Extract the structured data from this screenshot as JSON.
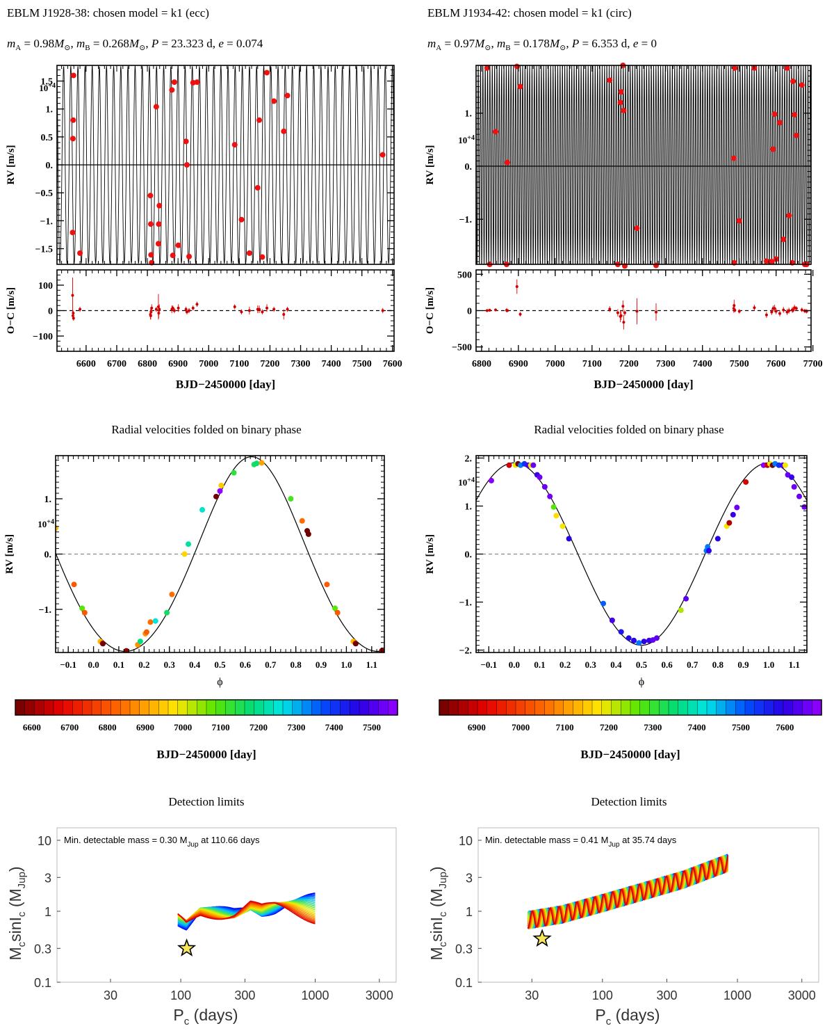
{
  "chart_data": [
    {
      "id": "rv_left",
      "type": "scatter",
      "title": "EBLM J1928-38: chosen model = k1 (ecc)",
      "subtitle": "m_A = 0.98M_sun, m_B = 0.268M_sun, P = 23.323 d, e = 0.074",
      "ylabel": "RV [m/s]",
      "y_multiplier": "10+4",
      "xlim": [
        6505,
        7605
      ],
      "ylim": [
        -1.78,
        1.78
      ],
      "yticks": [
        -1.5,
        -1.0,
        -0.5,
        0.0,
        0.5,
        1.0,
        1.5
      ],
      "model": {
        "K": 1.76,
        "P": 23.323,
        "e": 0.074
      },
      "x": [
        6556,
        6557,
        6558,
        6559,
        6580,
        6810,
        6811,
        6812,
        6814,
        6829,
        6836,
        6837,
        6839,
        6880,
        6883,
        6888,
        6901,
        6926,
        6929,
        6936,
        6949,
        6962,
        7085,
        7107,
        7133,
        7160,
        7165,
        7175,
        7190,
        7213,
        7245,
        7257,
        7568
      ],
      "y": [
        -1.21,
        0.47,
        0.8,
        1.6,
        -1.58,
        -0.55,
        -1.06,
        -1.61,
        -1.75,
        1.04,
        -1.41,
        -1.06,
        -0.73,
        1.34,
        -1.62,
        1.48,
        -1.44,
        0.42,
        0.0,
        -1.64,
        1.47,
        1.48,
        0.36,
        -0.98,
        -1.58,
        -0.41,
        0.8,
        -1.65,
        1.65,
        1.14,
        0.6,
        1.24,
        0.18
      ]
    },
    {
      "id": "oc_left",
      "type": "scatter",
      "ylabel": "O−C [m/s]",
      "xlabel": "BJD−2450000 [day]",
      "xlim": [
        6505,
        7605
      ],
      "ylim": [
        -160,
        160
      ],
      "yticks": [
        -100,
        0,
        100
      ],
      "xticks": [
        6600,
        6700,
        6800,
        6900,
        7000,
        7100,
        7200,
        7300,
        7400,
        7500,
        7600
      ],
      "x": [
        6556,
        6557,
        6558,
        6559,
        6580,
        6810,
        6811,
        6812,
        6814,
        6829,
        6836,
        6837,
        6839,
        6880,
        6883,
        6888,
        6901,
        6926,
        6929,
        6936,
        6949,
        6962,
        7085,
        7107,
        7133,
        7160,
        7165,
        7175,
        7190,
        7213,
        7245,
        7257,
        7568
      ],
      "y": [
        60,
        -20,
        -10,
        -30,
        5,
        -15,
        -20,
        -5,
        10,
        5,
        15,
        -10,
        5,
        5,
        10,
        0,
        10,
        5,
        -5,
        0,
        10,
        25,
        15,
        -5,
        0,
        5,
        5,
        -5,
        10,
        5,
        -15,
        5,
        0
      ],
      "err": [
        70,
        15,
        10,
        10,
        10,
        20,
        15,
        15,
        15,
        10,
        50,
        20,
        20,
        15,
        10,
        10,
        15,
        10,
        10,
        10,
        10,
        10,
        10,
        10,
        15,
        15,
        15,
        10,
        15,
        10,
        20,
        10,
        10
      ]
    },
    {
      "id": "rv_right",
      "type": "scatter",
      "title": "EBLM J1934-42: chosen model = k1 (circ)",
      "subtitle": "m_A = 0.97M_sun, m_B = 0.178M_sun, P = 6.353 d, e = 0",
      "ylabel": "RV [m/s]",
      "y_multiplier": "10+4",
      "xlim": [
        6785,
        7695
      ],
      "ylim": [
        -1.85,
        1.9
      ],
      "yticks": [
        -1.0,
        0.0,
        1.0
      ],
      "model": {
        "K": 1.9,
        "P": 6.353,
        "e": 0.0
      },
      "x": [
        6815,
        6822,
        6838,
        6868,
        6870,
        6896,
        6905,
        7148,
        7170,
        7177,
        7179,
        7184,
        7186,
        7189,
        7222,
        7274,
        7485,
        7486,
        7488,
        7500,
        7541,
        7574,
        7588,
        7592,
        7596,
        7600,
        7610,
        7620,
        7630,
        7635,
        7644,
        7646,
        7650,
        7655,
        7670,
        7678,
        7683
      ],
      "y": [
        1.85,
        -1.85,
        0.65,
        -1.85,
        0.07,
        1.88,
        1.5,
        1.62,
        -1.85,
        1.2,
        1.4,
        1.9,
        1.05,
        -1.88,
        -1.17,
        -1.87,
        0.15,
        -1.82,
        1.85,
        -1.03,
        1.85,
        -1.79,
        -1.8,
        0.32,
        0.98,
        -1.75,
        0.82,
        -1.38,
        1.85,
        -0.93,
        -1.82,
        1.6,
        0.97,
        0.58,
        1.53,
        -1.85,
        -1.85
      ]
    },
    {
      "id": "oc_right",
      "type": "scatter",
      "ylabel": "O−C [m/s]",
      "xlabel": "BJD−2450000 [day]",
      "xlim": [
        6785,
        7695
      ],
      "ylim": [
        -560,
        560
      ],
      "yticks": [
        -500,
        0,
        500
      ],
      "xticks": [
        6800,
        6900,
        7000,
        7100,
        7200,
        7300,
        7400,
        7500,
        7600,
        7700
      ],
      "x": [
        6815,
        6822,
        6838,
        6868,
        6870,
        6896,
        6905,
        7148,
        7170,
        7177,
        7179,
        7184,
        7186,
        7189,
        7222,
        7274,
        7485,
        7486,
        7488,
        7500,
        7541,
        7574,
        7588,
        7592,
        7596,
        7600,
        7610,
        7620,
        7630,
        7635,
        7644,
        7646,
        7650,
        7655,
        7670,
        7678,
        7683
      ],
      "y": [
        0,
        5,
        10,
        5,
        0,
        330,
        -50,
        20,
        -30,
        -80,
        -70,
        60,
        -160,
        -30,
        -10,
        -20,
        30,
        70,
        5,
        -10,
        40,
        -60,
        -20,
        30,
        30,
        -10,
        -40,
        10,
        -20,
        0,
        10,
        5,
        40,
        30,
        10,
        -5,
        -10
      ],
      "err": [
        20,
        20,
        20,
        30,
        20,
        100,
        30,
        40,
        50,
        80,
        60,
        80,
        100,
        40,
        180,
        120,
        60,
        80,
        30,
        30,
        40,
        40,
        40,
        40,
        50,
        40,
        40,
        40,
        40,
        40,
        40,
        30,
        40,
        30,
        30,
        30,
        30
      ]
    },
    {
      "id": "fold_left",
      "type": "scatter",
      "title": "Radial velocities folded on binary phase",
      "xlabel": "ϕ",
      "ylabel": "RV [m/s]",
      "y_multiplier": "10+4",
      "xlim": [
        -0.15,
        1.15
      ],
      "ylim": [
        -1.78,
        1.78
      ],
      "xticks": [
        -0.1,
        0.0,
        0.1,
        0.2,
        0.3,
        0.4,
        0.5,
        0.6,
        0.7,
        0.8,
        0.9,
        1.0,
        1.1
      ],
      "yticks": [
        -1.0,
        0.0,
        1.0
      ],
      "model": {
        "K": 1.76,
        "e": 0.074,
        "tmin_phase": 0.125
      },
      "colorbar": {
        "label": "BJD−2450000 [day]",
        "range": [
          6556,
          7568
        ],
        "ticks": [
          6600,
          6700,
          6800,
          6900,
          7000,
          7100,
          7200,
          7300,
          7400,
          7500
        ]
      },
      "phase": [
        -0.15,
        -0.077,
        -0.045,
        -0.035,
        0.027,
        0.035,
        0.037,
        0.13,
        0.175,
        0.185,
        0.205,
        0.21,
        0.225,
        0.245,
        0.29,
        0.31,
        0.36,
        0.375,
        0.43,
        0.485,
        0.5,
        0.505,
        0.555,
        0.635,
        0.645,
        0.665,
        0.78,
        0.825,
        0.845,
        0.85,
        0.923,
        0.955,
        0.965,
        1.027,
        1.035,
        1.037,
        1.14
      ],
      "rv": [
        0.47,
        -0.55,
        -0.98,
        -1.06,
        -1.58,
        -1.61,
        -1.62,
        -1.75,
        -1.64,
        -1.58,
        -1.44,
        -1.41,
        -1.23,
        -1.21,
        -1.06,
        -0.73,
        0.0,
        0.18,
        0.8,
        1.04,
        1.14,
        1.24,
        1.47,
        1.62,
        1.64,
        1.65,
        1.0,
        0.6,
        0.42,
        0.36,
        -0.55,
        -0.98,
        -1.06,
        -1.58,
        -1.61,
        -1.62,
        -1.75
      ],
      "bjd": [
        6926,
        6811,
        7085,
        6810,
        6929,
        6829,
        6558,
        6580,
        6880,
        7190,
        6883,
        6812,
        6836,
        7257,
        7165,
        6839,
        6962,
        7213,
        7245,
        6559,
        7568,
        6949,
        7133,
        7160,
        7175,
        6901,
        7107,
        6837,
        6556,
        6557,
        6811,
        7085,
        6810,
        6929,
        6829,
        6558,
        6580
      ]
    },
    {
      "id": "fold_right",
      "type": "scatter",
      "title": "Radial velocities folded on binary phase",
      "xlabel": "ϕ",
      "ylabel": "RV [m/s]",
      "y_multiplier": "10+4",
      "xlim": [
        -0.15,
        1.15
      ],
      "ylim": [
        -2.05,
        2.05
      ],
      "xticks": [
        -0.1,
        0.0,
        0.1,
        0.2,
        0.3,
        0.4,
        0.5,
        0.6,
        0.7,
        0.8,
        0.9,
        1.0,
        1.1
      ],
      "yticks": [
        -2.0,
        -1.0,
        0.0,
        1.0,
        2.0
      ],
      "model": {
        "K": 1.9,
        "e": 0.0,
        "tmax_phase": 0.0
      },
      "colorbar": {
        "label": "BJD−2450000 [day]",
        "range": [
          6815,
          7683
        ],
        "ticks": [
          6900,
          7000,
          7100,
          7200,
          7300,
          7400,
          7500,
          7600
        ]
      },
      "phase": [
        -0.09,
        -0.02,
        0.005,
        0.015,
        0.025,
        0.04,
        0.055,
        0.065,
        0.075,
        0.09,
        0.1,
        0.12,
        0.14,
        0.155,
        0.165,
        0.19,
        0.215,
        0.35,
        0.385,
        0.42,
        0.45,
        0.47,
        0.49,
        0.51,
        0.53,
        0.545,
        0.56,
        0.655,
        0.675,
        0.755,
        0.76,
        0.765,
        0.8,
        0.835,
        0.845,
        0.86,
        0.875,
        0.91,
        0.98,
        0.995,
        1.005,
        1.015,
        1.025,
        1.04,
        1.055,
        1.065,
        1.075,
        1.09,
        1.1,
        1.12,
        1.14
      ],
      "rv": [
        1.53,
        1.85,
        1.85,
        1.88,
        1.85,
        1.88,
        1.85,
        1.85,
        1.85,
        1.65,
        1.6,
        1.4,
        1.2,
        0.98,
        0.8,
        0.58,
        0.32,
        -1.03,
        -1.38,
        -1.62,
        -1.75,
        -1.8,
        -1.85,
        -1.82,
        -1.8,
        -1.79,
        -1.75,
        -1.17,
        -0.93,
        0.07,
        0.15,
        0.07,
        0.32,
        0.58,
        0.65,
        0.82,
        0.97,
        1.5,
        1.85,
        1.85,
        1.88,
        1.85,
        1.88,
        1.85,
        1.85,
        1.85,
        1.65,
        1.6,
        1.4,
        1.2,
        0.98
      ],
      "bjd": [
        7670,
        6896,
        7189,
        6815,
        7485,
        7541,
        7630,
        7186,
        7646,
        7610,
        7650,
        7646,
        7655,
        7274,
        7170,
        7184,
        7596,
        7500,
        7620,
        7574,
        7588,
        7592,
        7488,
        7600,
        7610,
        7644,
        7635,
        7222,
        7635,
        7486,
        7485,
        7600,
        7596,
        7184,
        6870,
        7610,
        7650,
        6905,
        7670,
        6896,
        7189,
        6815,
        7485,
        7541,
        7630,
        7186,
        7646,
        7610,
        7650,
        7646,
        7655
      ]
    },
    {
      "id": "det_left",
      "type": "line",
      "title": "Detection limits",
      "annotation": "Min. detectable mass = 0.30 M",
      "annotation_sub": "Jup",
      "annotation_tail": " at 110.66 days",
      "xlabel": "P",
      "xlabel_sub": "c",
      "xlabel_tail": " (days)",
      "ylabel": "M",
      "ylabel_sub": "c",
      "ylabel_mid": "sinI",
      "ylabel_mid_sub": "c",
      "ylabel_tail": " (M",
      "ylabel_tail_sub": "Jup",
      "ylabel_close": ")",
      "log_x": true,
      "log_y": true,
      "xlim": [
        12,
        4000
      ],
      "ylim": [
        0.1,
        15
      ],
      "xticks": [
        30,
        100,
        300,
        1000,
        3000
      ],
      "xtick_labels": [
        "30",
        "100",
        "300",
        "1000",
        "3000"
      ],
      "yticks": [
        0.1,
        0.3,
        1,
        3,
        10
      ],
      "ytick_labels": [
        "0.1",
        "0.3",
        "1",
        "3",
        "10"
      ],
      "star": {
        "x": 110.66,
        "y": 0.3
      },
      "curve_range": [
        95,
        1000
      ],
      "curve_base": [
        [
          95,
          0.75
        ],
        [
          110,
          0.6
        ],
        [
          140,
          0.9
        ],
        [
          200,
          0.95
        ],
        [
          250,
          1.0
        ],
        [
          330,
          1.3
        ],
        [
          400,
          1.05
        ],
        [
          600,
          1.1
        ],
        [
          1000,
          1.1
        ]
      ],
      "curve_spread": 0.85
    },
    {
      "id": "det_right",
      "type": "line",
      "title": "Detection limits",
      "annotation": "Min. detectable mass = 0.41 M",
      "annotation_sub": "Jup",
      "annotation_tail": " at 35.74 days",
      "xlabel": "P",
      "xlabel_sub": "c",
      "xlabel_tail": " (days)",
      "ylabel": "M",
      "ylabel_sub": "c",
      "ylabel_mid": "sinI",
      "ylabel_mid_sub": "c",
      "ylabel_tail": " (M",
      "ylabel_tail_sub": "Jup",
      "ylabel_close": ")",
      "log_x": true,
      "log_y": true,
      "xlim": [
        12,
        4000
      ],
      "ylim": [
        0.1,
        15
      ],
      "xticks": [
        30,
        100,
        300,
        1000,
        3000
      ],
      "xtick_labels": [
        "30",
        "100",
        "300",
        "1000",
        "3000"
      ],
      "yticks": [
        0.1,
        0.3,
        1,
        3,
        10
      ],
      "ytick_labels": [
        "0.1",
        "0.3",
        "1",
        "3",
        "10"
      ],
      "star": {
        "x": 35.74,
        "y": 0.41
      },
      "curve_range": [
        28,
        850
      ],
      "curve_base": [
        [
          28,
          0.75
        ],
        [
          50,
          0.9
        ],
        [
          100,
          1.3
        ],
        [
          200,
          1.9
        ],
        [
          400,
          2.8
        ],
        [
          850,
          4.8
        ]
      ],
      "curve_spread": 0.45
    }
  ]
}
